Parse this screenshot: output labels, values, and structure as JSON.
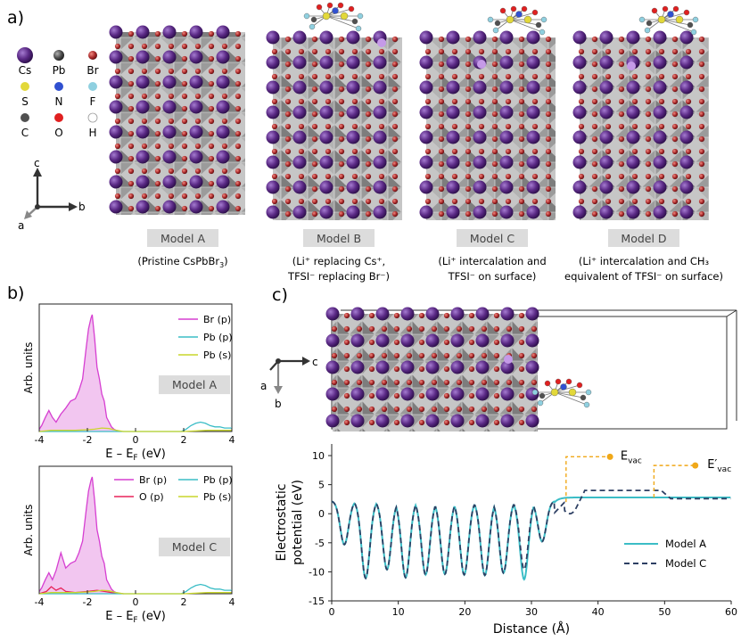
{
  "panels": {
    "a": "a)",
    "b": "b)",
    "c": "c)"
  },
  "legend_atoms": [
    {
      "label": "Cs",
      "color": "#5b2a86",
      "big": true
    },
    {
      "label": "Pb",
      "color": "#4a4a4a"
    },
    {
      "label": "Br",
      "color": "#a8282a"
    },
    {
      "label": "S",
      "color": "#e2d83a"
    },
    {
      "label": "N",
      "color": "#3050d0"
    },
    {
      "label": "F",
      "color": "#8fd0e0"
    },
    {
      "label": "C",
      "color": "#505050"
    },
    {
      "label": "O",
      "color": "#e02020"
    },
    {
      "label": "H",
      "color": "#ffffff"
    }
  ],
  "axes_a": {
    "c": "c",
    "b": "b",
    "a": "a"
  },
  "axes_c": {
    "c": "c",
    "b": "b",
    "a": "a"
  },
  "models": [
    {
      "label": "Model A",
      "caption1": "(Pristine CsPbBr",
      "caption1_sub": "3",
      "caption1_end": ")",
      "caption2": ""
    },
    {
      "label": "Model B",
      "caption1": "(Li⁺ replacing Cs⁺,",
      "caption2": "TFSI⁻ replacing Br⁻)"
    },
    {
      "label": "Model C",
      "caption1": "(Li⁺ intercalation and",
      "caption2": "TFSI⁻ on surface)"
    },
    {
      "label": "Model D",
      "caption1": "(Li⁺ intercalation and CH₃",
      "caption2": "equivalent of TFSI⁻ on surface)"
    }
  ],
  "chart_data": [
    {
      "type": "area",
      "panel": "b-top",
      "title": "Model A",
      "xlabel": "E – E_F (eV)",
      "ylabel": "Arb. units",
      "xlim": [
        -4,
        4
      ],
      "xticks": [
        -4,
        -2,
        0,
        2,
        4
      ],
      "series": [
        {
          "name": "Br (p)",
          "color": "#d63fd1",
          "fill": "#f2c6f0",
          "x": [
            -4,
            -3.9,
            -3.75,
            -3.6,
            -3.45,
            -3.3,
            -3.1,
            -2.9,
            -2.7,
            -2.5,
            -2.35,
            -2.2,
            -2.05,
            -1.95,
            -1.85,
            -1.8,
            -1.7,
            -1.6,
            -1.5,
            -1.4,
            -1.3,
            -1.2,
            -1.1,
            -1.0,
            -0.9,
            -0.8,
            -0.6
          ],
          "y": [
            0.02,
            0.05,
            0.12,
            0.18,
            0.12,
            0.08,
            0.15,
            0.2,
            0.26,
            0.28,
            0.35,
            0.45,
            0.72,
            0.88,
            0.97,
            1.0,
            0.8,
            0.55,
            0.45,
            0.32,
            0.26,
            0.12,
            0.08,
            0.04,
            0.02,
            0.01,
            0.0
          ]
        },
        {
          "name": "Pb (p)",
          "color": "#3bbdc6",
          "x": [
            -4,
            -1,
            1.9,
            2.1,
            2.3,
            2.5,
            2.7,
            2.9,
            3.1,
            3.3,
            3.5,
            3.7,
            3.9,
            4
          ],
          "y": [
            0.0,
            0.0,
            0.0,
            0.02,
            0.05,
            0.07,
            0.08,
            0.07,
            0.05,
            0.04,
            0.04,
            0.03,
            0.03,
            0.03
          ]
        },
        {
          "name": "Pb (s)",
          "color": "#c9d62c",
          "x": [
            -4,
            -3.5,
            -3,
            -2.5,
            -2,
            -1.7,
            -1.4,
            -1.1,
            -0.8,
            -0.5,
            0,
            2,
            3,
            4
          ],
          "y": [
            0.0,
            0.01,
            0.01,
            0.01,
            0.015,
            0.02,
            0.03,
            0.025,
            0.01,
            0.0,
            0.0,
            0.0,
            0.01,
            0.01
          ]
        }
      ]
    },
    {
      "type": "area",
      "panel": "b-bottom",
      "title": "Model C",
      "xlabel": "E – E_F (eV)",
      "ylabel": "Arb. units",
      "xlim": [
        -4,
        4
      ],
      "xticks": [
        -4,
        -2,
        0,
        2,
        4
      ],
      "series": [
        {
          "name": "Br (p)",
          "color": "#d63fd1",
          "fill": "#f2c6f0",
          "x": [
            -4,
            -3.9,
            -3.75,
            -3.6,
            -3.45,
            -3.3,
            -3.1,
            -2.9,
            -2.7,
            -2.5,
            -2.35,
            -2.2,
            -2.05,
            -1.95,
            -1.85,
            -1.8,
            -1.7,
            -1.6,
            -1.5,
            -1.4,
            -1.3,
            -1.2,
            -1.1,
            -1.0,
            -0.9,
            -0.8,
            -0.6
          ],
          "y": [
            0.02,
            0.05,
            0.12,
            0.18,
            0.12,
            0.2,
            0.35,
            0.22,
            0.26,
            0.28,
            0.35,
            0.45,
            0.72,
            0.88,
            0.97,
            1.0,
            0.8,
            0.55,
            0.45,
            0.32,
            0.26,
            0.12,
            0.08,
            0.04,
            0.02,
            0.01,
            0.0
          ]
        },
        {
          "name": "O (p)",
          "color": "#e8245a",
          "x": [
            -4,
            -3.7,
            -3.5,
            -3.3,
            -3.1,
            -2.9,
            -2.5,
            -2,
            -1.6,
            -1.3,
            -1,
            -0.5
          ],
          "y": [
            0.0,
            0.02,
            0.06,
            0.03,
            0.05,
            0.02,
            0.01,
            0.02,
            0.03,
            0.02,
            0.01,
            0.0
          ]
        },
        {
          "name": "Pb (p)",
          "color": "#3bbdc6",
          "x": [
            -4,
            -1,
            1.9,
            2.1,
            2.3,
            2.5,
            2.7,
            2.9,
            3.1,
            3.3,
            3.5,
            3.7,
            3.9,
            4
          ],
          "y": [
            0.0,
            0.0,
            0.0,
            0.02,
            0.05,
            0.07,
            0.08,
            0.07,
            0.05,
            0.04,
            0.04,
            0.03,
            0.03,
            0.03
          ]
        },
        {
          "name": "Pb (s)",
          "color": "#c9d62c",
          "x": [
            -4,
            -3.5,
            -3,
            -2.5,
            -2,
            -1.7,
            -1.4,
            -1.1,
            -0.8,
            -0.5,
            0,
            2,
            3,
            4
          ],
          "y": [
            0.0,
            0.01,
            0.01,
            0.01,
            0.015,
            0.02,
            0.03,
            0.025,
            0.01,
            0.0,
            0.0,
            0.0,
            0.01,
            0.01
          ]
        }
      ]
    },
    {
      "type": "line",
      "panel": "c",
      "xlabel": "Distance (Å)",
      "ylabel1": "Electrostatic",
      "ylabel2": "potential (eV)",
      "xlim": [
        0,
        60
      ],
      "ylim": [
        -15,
        12
      ],
      "xticks": [
        0,
        10,
        20,
        30,
        40,
        50,
        60
      ],
      "yticks": [
        -15,
        -10,
        -5,
        0,
        5,
        10
      ],
      "annotations": [
        {
          "text": "E",
          "sub": "vac",
          "x": 41.5,
          "y": 9.8
        },
        {
          "text": "E′",
          "sub": "vac",
          "x": 54,
          "y": 8.3
        }
      ],
      "series": [
        {
          "name": "Model A",
          "color": "#3bbdc6",
          "dash": "",
          "well_centers": [
            1.9,
            5.1,
            8.3,
            11.1,
            14.1,
            17.0,
            19.9,
            23.0,
            25.8,
            28.9,
            31.6
          ],
          "well_depths": [
            -5,
            -11.3,
            -9.8,
            -11.2,
            -10.7,
            -10.6,
            -10.7,
            -10.8,
            -10.4,
            -11.5,
            -5
          ],
          "peaks": [
            2.5,
            2.0,
            2.0,
            2.0,
            2.0,
            2.0,
            2.0,
            2.0,
            2.0,
            2.0,
            2.0
          ],
          "plateau": 2.8
        },
        {
          "name": "Model C",
          "color": "#2d3f63",
          "dash": "6,4",
          "well_centers": [
            1.9,
            5.1,
            8.3,
            11.1,
            14.1,
            17.0,
            19.9,
            23.0,
            25.8,
            28.9,
            31.6
          ],
          "well_depths": [
            -5,
            -11.3,
            -9.8,
            -11.2,
            -10.7,
            -10.6,
            -10.7,
            -10.8,
            -10.4,
            -9.8,
            -5
          ],
          "peaks": [
            2.5,
            2.0,
            2.0,
            2.0,
            2.0,
            2.0,
            2.0,
            2.0,
            2.0,
            2.0,
            2.0
          ],
          "plateau": 2.6
        }
      ]
    }
  ]
}
